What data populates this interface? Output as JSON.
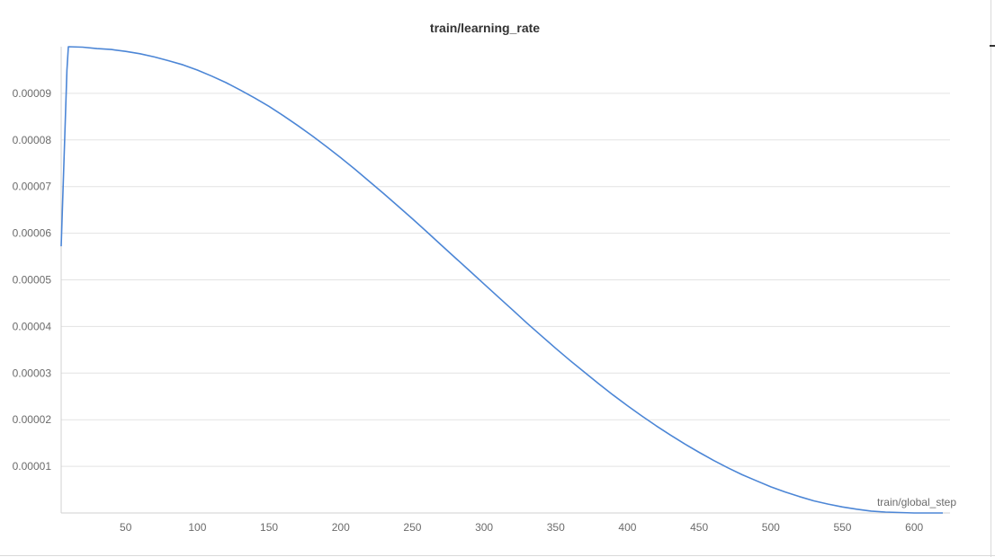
{
  "chart_data": {
    "type": "line",
    "title": "train/learning_rate",
    "xlabel": "train/global_step",
    "ylabel": "",
    "xlim": [
      5,
      625
    ],
    "ylim": [
      0,
      0.0001
    ],
    "x_ticks": [
      50,
      100,
      150,
      200,
      250,
      300,
      350,
      400,
      450,
      500,
      550,
      600
    ],
    "x_tick_labels": [
      "50",
      "100",
      "150",
      "200",
      "250",
      "300",
      "350",
      "400",
      "450",
      "500",
      "550",
      "600"
    ],
    "y_ticks": [
      1e-05,
      2e-05,
      3e-05,
      4e-05,
      5e-05,
      6e-05,
      7e-05,
      8e-05,
      9e-05
    ],
    "y_tick_labels": [
      "0.00001",
      "0.00002",
      "0.00003",
      "0.00004",
      "0.00005",
      "0.00006",
      "0.00007",
      "0.00008",
      "0.00009"
    ],
    "grid": true,
    "legend": "none",
    "line_color": "#4c86d6",
    "series": [
      {
        "values_x": [
          5,
          7,
          9,
          10,
          20,
          30,
          40,
          50,
          60,
          70,
          80,
          90,
          100,
          110,
          120,
          130,
          140,
          150,
          160,
          170,
          180,
          190,
          200,
          210,
          220,
          230,
          240,
          250,
          260,
          270,
          280,
          290,
          300,
          310,
          320,
          330,
          340,
          350,
          360,
          370,
          380,
          390,
          400,
          410,
          420,
          430,
          440,
          450,
          460,
          470,
          480,
          490,
          500,
          510,
          520,
          530,
          540,
          550,
          560,
          570,
          580,
          590,
          600,
          610,
          620
        ],
        "values_y": [
          5.72e-05,
          7.6e-05,
          9.5e-05,
          0.0001,
          9.99e-05,
          9.96e-05,
          9.94e-05,
          9.9e-05,
          9.85e-05,
          9.78e-05,
          9.7e-05,
          9.61e-05,
          9.5e-05,
          9.37e-05,
          9.23e-05,
          9.07e-05,
          8.9e-05,
          8.72e-05,
          8.52e-05,
          8.31e-05,
          8.09e-05,
          7.86e-05,
          7.62e-05,
          7.37e-05,
          7.11e-05,
          6.85e-05,
          6.58e-05,
          6.31e-05,
          6.03e-05,
          5.75e-05,
          5.47e-05,
          5.19e-05,
          4.91e-05,
          4.63e-05,
          4.35e-05,
          4.07e-05,
          3.8e-05,
          3.53e-05,
          3.27e-05,
          3.02e-05,
          2.77e-05,
          2.53e-05,
          2.3e-05,
          2.08e-05,
          1.87e-05,
          1.67e-05,
          1.48e-05,
          1.3e-05,
          1.13e-05,
          9.7e-06,
          8.2e-06,
          6.9e-06,
          5.6e-06,
          4.5e-06,
          3.5e-06,
          2.6e-06,
          1.9e-06,
          1.3e-06,
          8e-07,
          4e-07,
          2e-07,
          1e-07,
          0.0,
          0.0,
          0.0
        ]
      }
    ]
  }
}
